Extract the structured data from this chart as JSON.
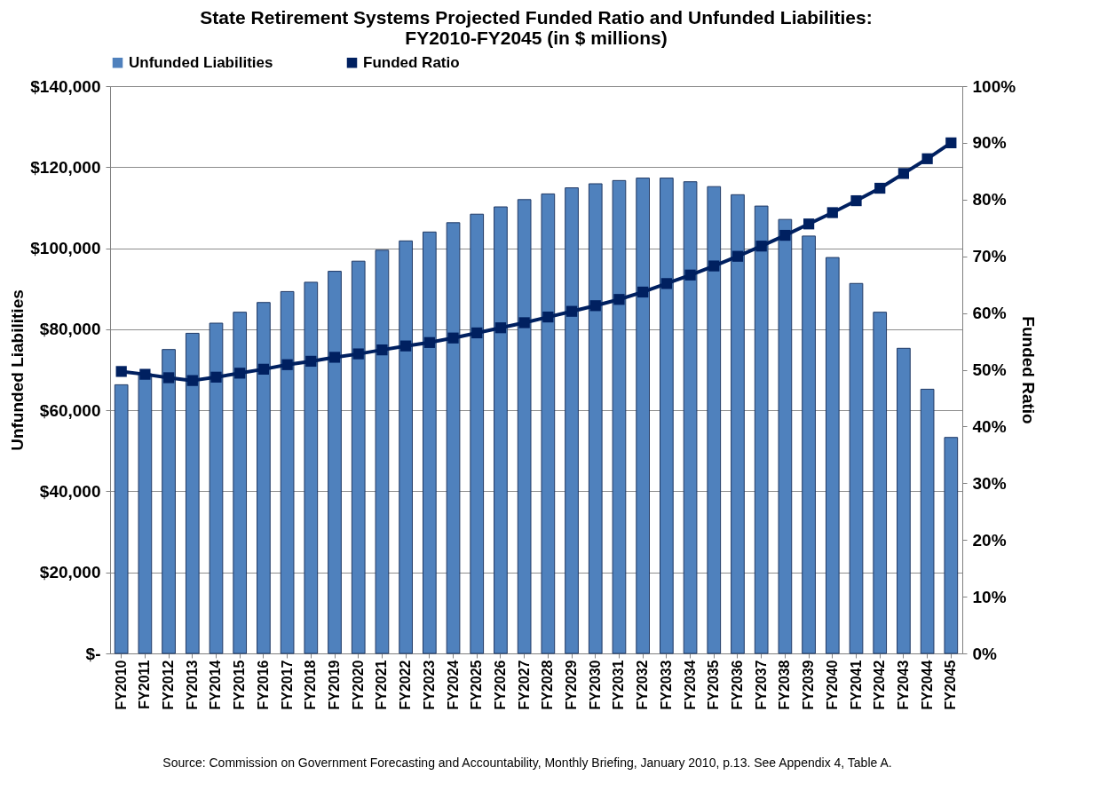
{
  "chart_data": {
    "type": "bar",
    "title": "State Retirement Systems Projected Funded Ratio and Unfunded Liabilities:\nFY2010-FY2045 (in $ millions)",
    "ylabel": "Unfunded Liabilities",
    "y2label": "Funded Ratio",
    "categories": [
      "FY2010",
      "FY2011",
      "FY2012",
      "FY2013",
      "FY2014",
      "FY2015",
      "FY2016",
      "FY2017",
      "FY2018",
      "FY2019",
      "FY2020",
      "FY2021",
      "FY2022",
      "FY2023",
      "FY2024",
      "FY2025",
      "FY2026",
      "FY2027",
      "FY2028",
      "FY2029",
      "FY2030",
      "FY2031",
      "FY2032",
      "FY2033",
      "FY2034",
      "FY2035",
      "FY2036",
      "FY2037",
      "FY2038",
      "FY2039",
      "FY2040",
      "FY2041",
      "FY2042",
      "FY2043",
      "FY2044",
      "FY2045"
    ],
    "series": [
      {
        "name": "Unfunded Liabilities",
        "color": "#4f81bd",
        "values": [
          66300,
          69000,
          75000,
          79000,
          81500,
          84200,
          86600,
          89300,
          91600,
          94300,
          96800,
          99500,
          101800,
          104000,
          106300,
          108400,
          110200,
          112000,
          113400,
          114900,
          115900,
          116700,
          117300,
          117300,
          116400,
          115200,
          113200,
          110400,
          107100,
          103000,
          97700,
          91300,
          84200,
          75300,
          65200,
          53300
        ]
      },
      {
        "name": "Funded Ratio",
        "type": "line",
        "axis": "y2",
        "color": "#002060",
        "marker": "square",
        "values": [
          49.7,
          49.2,
          48.6,
          48.1,
          48.7,
          49.4,
          50.1,
          50.9,
          51.5,
          52.2,
          52.8,
          53.5,
          54.2,
          54.8,
          55.6,
          56.5,
          57.4,
          58.3,
          59.3,
          60.3,
          61.3,
          62.4,
          63.7,
          65.2,
          66.7,
          68.3,
          70.0,
          71.8,
          73.7,
          75.7,
          77.7,
          79.8,
          82.0,
          84.6,
          87.2,
          90.0
        ]
      }
    ],
    "ylim": [
      0,
      140000
    ],
    "yticks": [
      {
        "value": 0,
        "label": "$-"
      },
      {
        "value": 20000,
        "label": "$20,000"
      },
      {
        "value": 40000,
        "label": "$40,000"
      },
      {
        "value": 60000,
        "label": "$60,000"
      },
      {
        "value": 80000,
        "label": "$80,000"
      },
      {
        "value": 100000,
        "label": "$100,000"
      },
      {
        "value": 120000,
        "label": "$120,000"
      },
      {
        "value": 140000,
        "label": "$140,000"
      }
    ],
    "y2lim": [
      0,
      100
    ],
    "y2ticks": [
      {
        "value": 0,
        "label": "0%"
      },
      {
        "value": 10,
        "label": "10%"
      },
      {
        "value": 20,
        "label": "20%"
      },
      {
        "value": 30,
        "label": "30%"
      },
      {
        "value": 40,
        "label": "40%"
      },
      {
        "value": 50,
        "label": "50%"
      },
      {
        "value": 60,
        "label": "60%"
      },
      {
        "value": 70,
        "label": "70%"
      },
      {
        "value": 80,
        "label": "80%"
      },
      {
        "value": 90,
        "label": "90%"
      },
      {
        "value": 100,
        "label": "100%"
      }
    ],
    "grid": "y",
    "legend": "top",
    "line_style": "solid",
    "annotations": [
      "Source: Commission on Government Forecasting and Accountability, Monthly Briefing, January 2010, p.13. See Appendix 4, Table A."
    ]
  }
}
